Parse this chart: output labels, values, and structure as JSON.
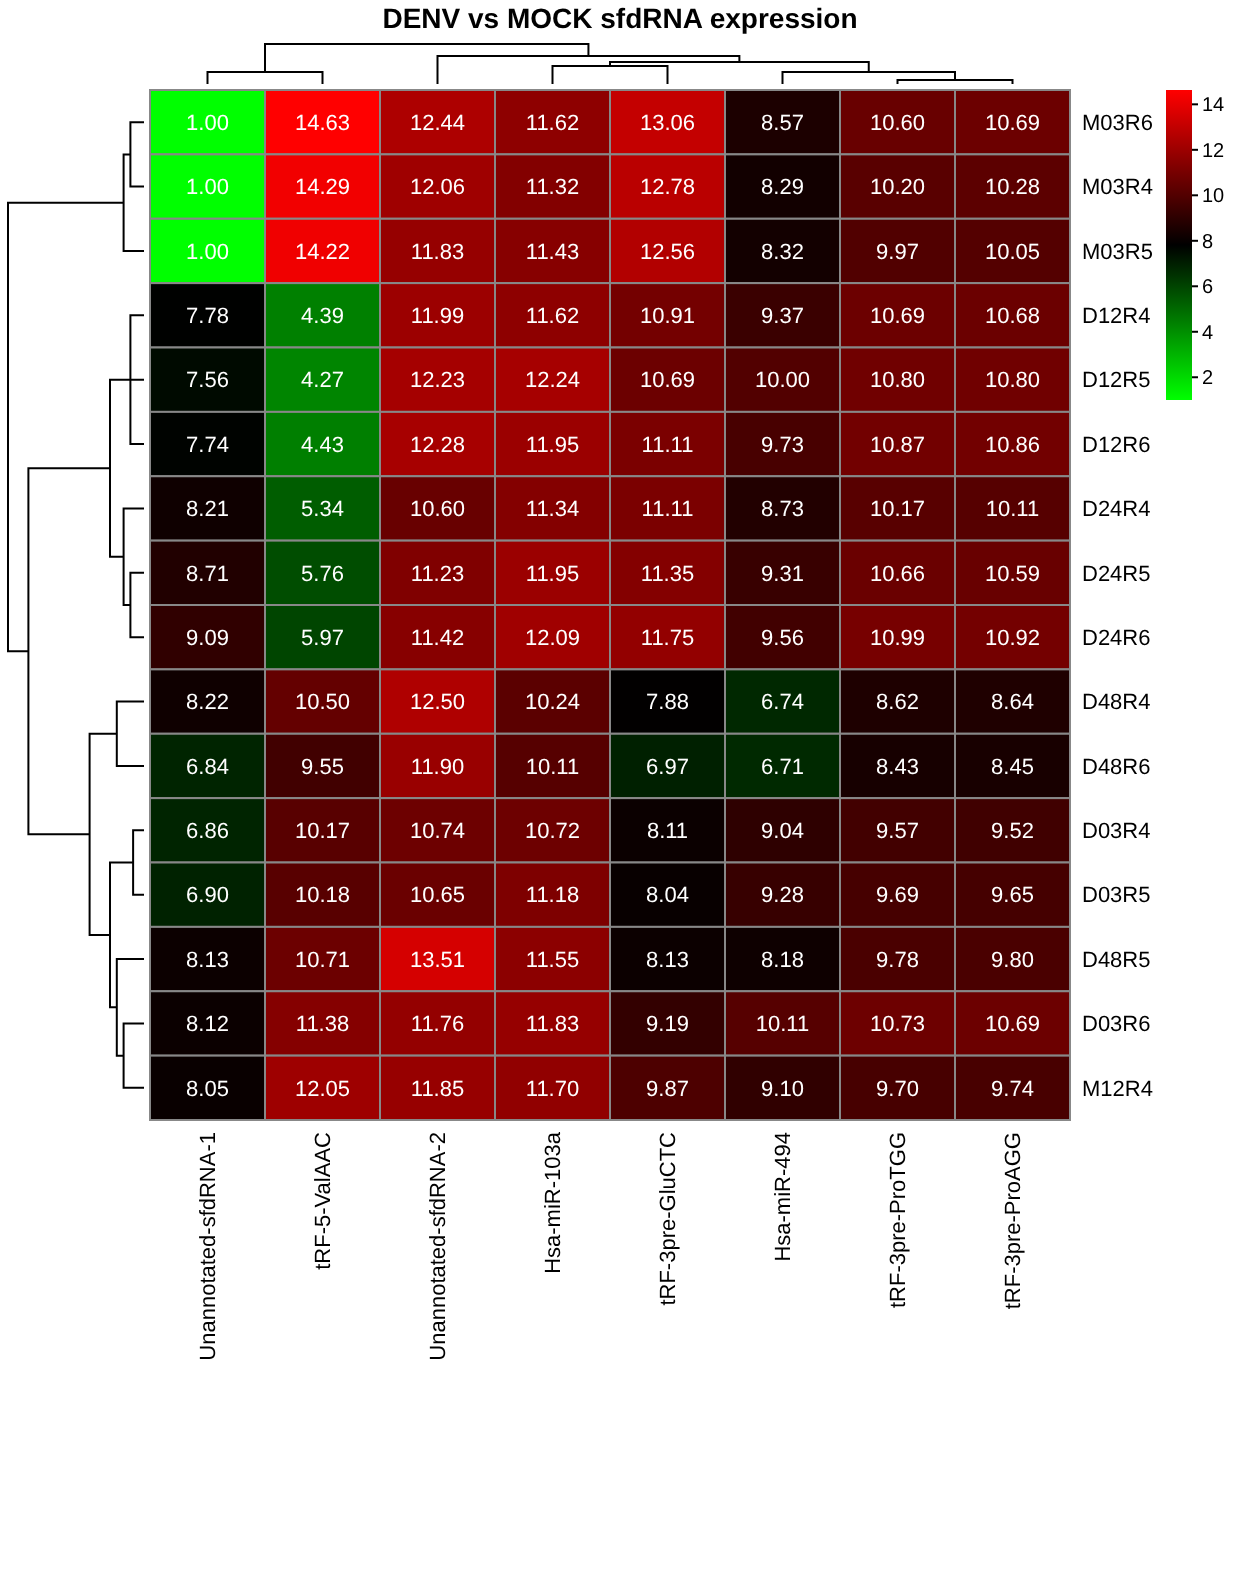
{
  "chart_data": {
    "type": "heatmap",
    "title": "DENV vs MOCK sfdRNA expression",
    "categories": [
      "Unannotated-sfdRNA-1",
      "tRF-5-ValAAC",
      "Unannotated-sfdRNA-2",
      "Hsa-miR-103a",
      "tRF-3pre-GluCTC",
      "Hsa-miR-494",
      "tRF-3pre-ProTGG",
      "tRF-3pre-ProAGG"
    ],
    "y_categories": [
      "M03R6",
      "M03R4",
      "M03R5",
      "D12R4",
      "D12R5",
      "D12R6",
      "D24R4",
      "D24R5",
      "D24R6",
      "D48R4",
      "D48R6",
      "D03R4",
      "D03R5",
      "D48R5",
      "D03R6",
      "M12R4"
    ],
    "cells": [
      [
        1.0,
        14.63,
        12.44,
        11.62,
        13.06,
        8.57,
        10.6,
        10.69
      ],
      [
        1.0,
        14.29,
        12.06,
        11.32,
        12.78,
        8.29,
        10.2,
        10.28
      ],
      [
        1.0,
        14.22,
        11.83,
        11.43,
        12.56,
        8.32,
        9.97,
        10.05
      ],
      [
        7.78,
        4.39,
        11.99,
        11.62,
        10.91,
        9.37,
        10.69,
        10.68
      ],
      [
        7.56,
        4.27,
        12.23,
        12.24,
        10.69,
        10.0,
        10.8,
        10.8
      ],
      [
        7.74,
        4.43,
        12.28,
        11.95,
        11.11,
        9.73,
        10.87,
        10.86
      ],
      [
        8.21,
        5.34,
        10.6,
        11.34,
        11.11,
        8.73,
        10.17,
        10.11
      ],
      [
        8.71,
        5.76,
        11.23,
        11.95,
        11.35,
        9.31,
        10.66,
        10.59
      ],
      [
        9.09,
        5.97,
        11.42,
        12.09,
        11.75,
        9.56,
        10.99,
        10.92
      ],
      [
        8.22,
        10.5,
        12.5,
        10.24,
        7.88,
        6.74,
        8.62,
        8.64
      ],
      [
        6.84,
        9.55,
        11.9,
        10.11,
        6.97,
        6.71,
        8.43,
        8.45
      ],
      [
        6.86,
        10.17,
        10.74,
        10.72,
        8.11,
        9.04,
        9.57,
        9.52
      ],
      [
        6.9,
        10.18,
        10.65,
        11.18,
        8.04,
        9.28,
        9.69,
        9.65
      ],
      [
        8.13,
        10.71,
        13.51,
        11.55,
        8.13,
        8.18,
        9.78,
        9.8
      ],
      [
        8.12,
        11.38,
        11.76,
        11.83,
        9.19,
        10.11,
        10.73,
        10.69
      ],
      [
        8.05,
        12.05,
        11.85,
        11.7,
        9.87,
        9.1,
        9.7,
        9.74
      ]
    ],
    "cell_labels": [
      [
        "1.00",
        "14.63",
        "12.44",
        "11.62",
        "13.06",
        "8.57",
        "10.60",
        "10.69"
      ],
      [
        "1.00",
        "14.29",
        "12.06",
        "11.32",
        "12.78",
        "8.29",
        "10.20",
        "10.28"
      ],
      [
        "1.00",
        "14.22",
        "11.83",
        "11.43",
        "12.56",
        "8.32",
        "9.97",
        "10.05"
      ],
      [
        "7.78",
        "4.39",
        "11.99",
        "11.62",
        "10.91",
        "9.37",
        "10.69",
        "10.68"
      ],
      [
        "7.56",
        "4.27",
        "12.23",
        "12.24",
        "10.69",
        "10.00",
        "10.80",
        "10.80"
      ],
      [
        "7.74",
        "4.43",
        "12.28",
        "11.95",
        "11.11",
        "9.73",
        "10.87",
        "10.86"
      ],
      [
        "8.21",
        "5.34",
        "10.60",
        "11.34",
        "11.11",
        "8.73",
        "10.17",
        "10.11"
      ],
      [
        "8.71",
        "5.76",
        "11.23",
        "11.95",
        "11.35",
        "9.31",
        "10.66",
        "10.59"
      ],
      [
        "9.09",
        "5.97",
        "11.42",
        "12.09",
        "11.75",
        "9.56",
        "10.99",
        "10.92"
      ],
      [
        "8.22",
        "10.50",
        "12.50",
        "10.24",
        "7.88",
        "6.74",
        "8.62",
        "8.64"
      ],
      [
        "6.84",
        "9.55",
        "11.90",
        "10.11",
        "6.97",
        "6.71",
        "8.43",
        "8.45"
      ],
      [
        "6.86",
        "10.17",
        "10.74",
        "10.72",
        "8.11",
        "9.04",
        "9.57",
        "9.52"
      ],
      [
        "6.90",
        "10.18",
        "10.65",
        "11.18",
        "8.04",
        "9.28",
        "9.69",
        "9.65"
      ],
      [
        "8.13",
        "10.71",
        "13.51",
        "11.55",
        "8.13",
        "8.18",
        "9.78",
        "9.80"
      ],
      [
        "8.12",
        "11.38",
        "11.76",
        "11.83",
        "9.19",
        "10.11",
        "10.73",
        "10.69"
      ],
      [
        "8.05",
        "12.05",
        "11.85",
        "11.70",
        "9.87",
        "9.10",
        "9.70",
        "9.74"
      ]
    ],
    "clim": [
      1,
      14.63
    ],
    "cticks": [
      2,
      4,
      6,
      8,
      10,
      12,
      14
    ]
  }
}
